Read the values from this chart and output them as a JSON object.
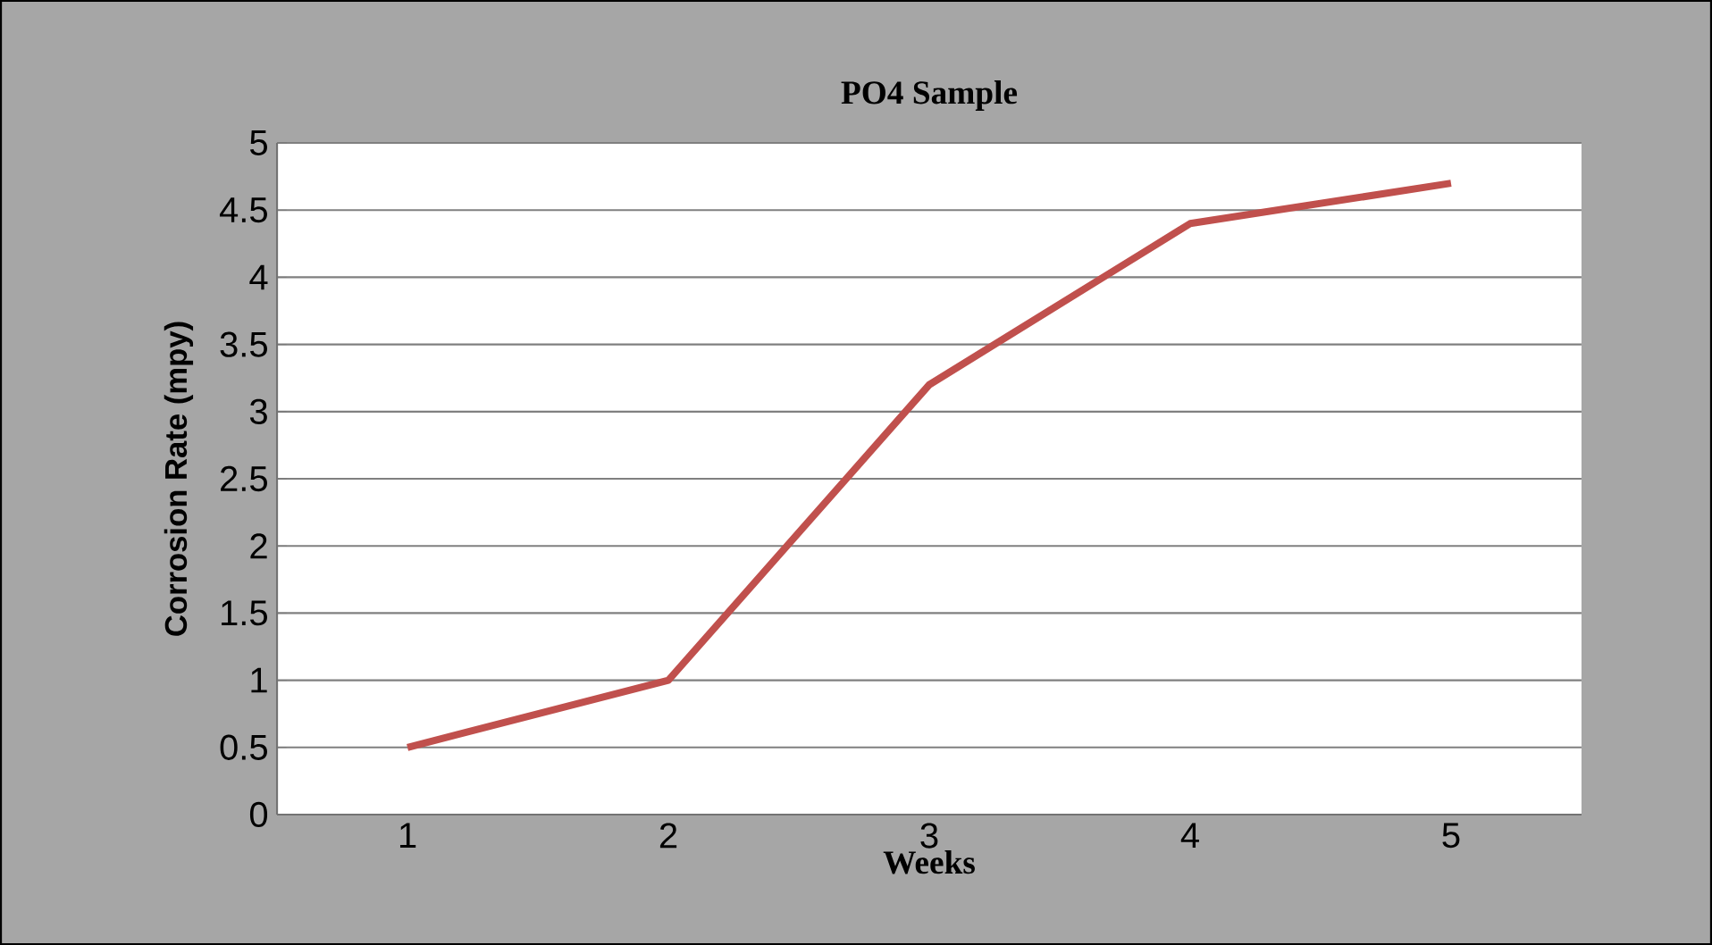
{
  "chart_data": {
    "type": "line",
    "title": "PO4 Sample",
    "xlabel": "Weeks",
    "ylabel": "Corrosion Rate (mpy)",
    "categories": [
      "1",
      "2",
      "3",
      "4",
      "5"
    ],
    "series": [
      {
        "color": "#c0504d",
        "values": [
          0.5,
          1,
          3.2,
          4.4,
          4.7
        ]
      }
    ],
    "ylim": [
      0,
      5
    ],
    "yticks": [
      0,
      0.5,
      1,
      1.5,
      2,
      2.5,
      3,
      3.5,
      4,
      4.5,
      5
    ],
    "grid": "y",
    "marker": "none",
    "line_style": "solid"
  }
}
